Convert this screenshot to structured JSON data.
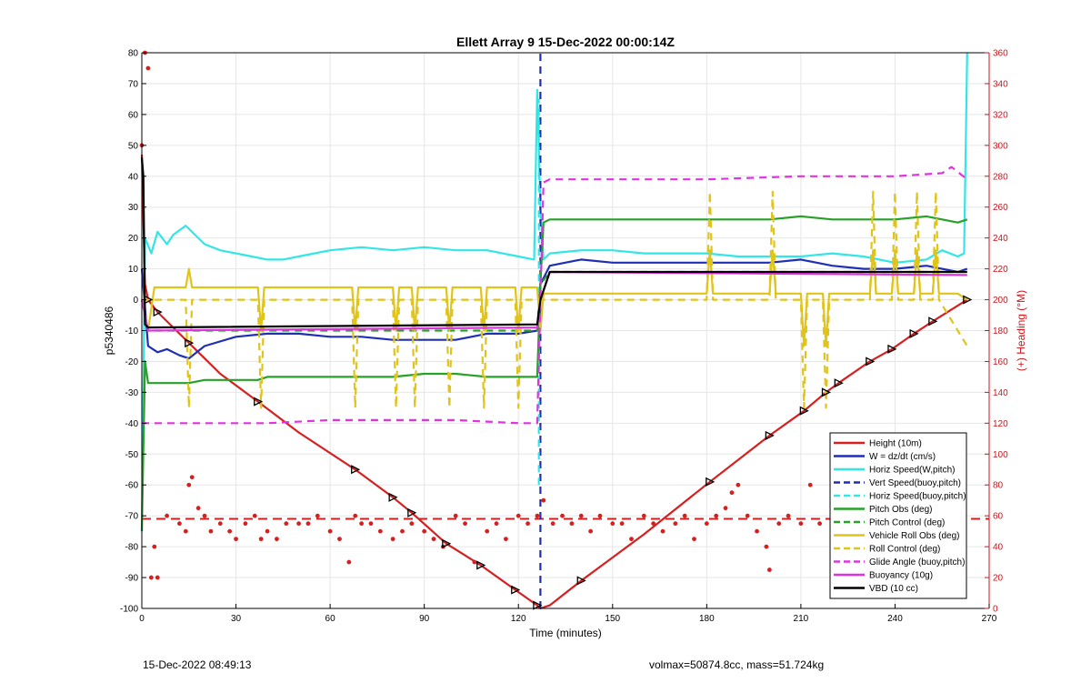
{
  "chart_data": {
    "type": "line",
    "title": "Ellett Array 9 15-Dec-2022 00:00:14Z",
    "xlabel": "Time (minutes)",
    "ylabel": "p5340486",
    "y2label": "(+) Heading (°M)",
    "xlim": [
      0,
      270
    ],
    "ylim": [
      -100,
      80
    ],
    "y2lim": [
      0,
      360
    ],
    "xticks": [
      0,
      30,
      60,
      90,
      120,
      150,
      180,
      210,
      240,
      270
    ],
    "yticks": [
      -100,
      -90,
      -80,
      -70,
      -60,
      -50,
      -40,
      -30,
      -20,
      -10,
      0,
      10,
      20,
      30,
      40,
      50,
      60,
      70,
      80
    ],
    "y2ticks": [
      0,
      20,
      40,
      60,
      80,
      100,
      120,
      140,
      160,
      180,
      200,
      220,
      240,
      260,
      280,
      300,
      320,
      340,
      360
    ],
    "grid": true,
    "legend_position": "lower-right",
    "colors": {
      "axis_left": "#000000",
      "axis_right": "#c8161d",
      "grid": "#e6e6e6"
    },
    "series": [
      {
        "name": "Height (10m)",
        "color": "#d62020",
        "style": "solid",
        "axis": "left",
        "x": [
          0,
          1,
          2,
          5,
          15,
          25,
          37,
          50,
          68,
          80,
          86,
          97,
          108,
          119,
          126,
          127,
          130,
          140,
          160,
          181,
          200,
          211,
          218,
          222,
          232,
          239,
          246,
          252,
          263
        ],
        "y": [
          47,
          5,
          0,
          -4,
          -14,
          -24,
          -33,
          -43,
          -55,
          -64,
          -69,
          -79,
          -86,
          -94,
          -99,
          -100,
          -99,
          -91,
          -76,
          -59,
          -44,
          -36,
          -30,
          -27,
          -20,
          -16,
          -11,
          -7,
          0
        ]
      },
      {
        "name": "W = dz/dt (cm/s)",
        "color": "#1f2fb4",
        "style": "solid",
        "axis": "left",
        "x": [
          0,
          2,
          5,
          8,
          12,
          15,
          20,
          30,
          40,
          50,
          60,
          70,
          80,
          90,
          100,
          110,
          120,
          126,
          127,
          130,
          140,
          150,
          160,
          170,
          180,
          190,
          200,
          210,
          220,
          230,
          240,
          250,
          260,
          263
        ],
        "y": [
          10,
          -15,
          -17,
          -16,
          -18,
          -19,
          -15,
          -12,
          -11,
          -11,
          -12,
          -12,
          -13,
          -13,
          -13,
          -11,
          -11,
          -10,
          5,
          11,
          13,
          12,
          12,
          12,
          12,
          12,
          12,
          13,
          11,
          10,
          10,
          11,
          9,
          10
        ]
      },
      {
        "name": "Horiz Speed(W,pitch)",
        "color": "#33e6e6",
        "style": "solid",
        "axis": "left",
        "x": [
          0,
          1,
          3,
          5,
          8,
          10,
          14,
          16,
          20,
          25,
          30,
          35,
          40,
          45,
          50,
          60,
          70,
          80,
          90,
          100,
          110,
          120,
          125,
          126,
          127,
          128,
          130,
          140,
          150,
          160,
          170,
          180,
          190,
          200,
          210,
          220,
          230,
          240,
          250,
          255,
          260,
          262,
          263
        ],
        "y": [
          -75,
          20,
          15,
          22,
          18,
          21,
          24,
          22,
          18,
          16,
          15,
          14,
          13,
          13,
          14,
          16,
          17,
          16,
          17,
          16,
          16,
          14,
          13,
          68,
          30,
          13,
          15,
          16,
          16,
          15,
          15,
          15,
          14,
          14,
          14,
          15,
          14,
          12,
          13,
          16,
          14,
          15,
          80
        ]
      },
      {
        "name": "Vert Speed(buoy,pitch)",
        "color": "#1f2fb4",
        "style": "dashed",
        "axis": "left",
        "x": [
          127,
          127
        ],
        "y": [
          -100,
          80
        ]
      },
      {
        "name": "Horiz Speed(buoy,pitch)",
        "color": "#33e6e6",
        "style": "dashed",
        "axis": "left",
        "x": [
          126.5,
          126.5
        ],
        "y": [
          -60,
          65
        ]
      },
      {
        "name": "Pitch Obs (deg)",
        "color": "#27a127",
        "style": "solid",
        "axis": "left",
        "x": [
          0,
          1,
          2,
          4,
          8,
          15,
          20,
          30,
          37,
          40,
          50,
          60,
          70,
          80,
          90,
          100,
          110,
          120,
          126,
          127,
          128,
          130,
          140,
          150,
          160,
          170,
          180,
          190,
          200,
          210,
          220,
          230,
          240,
          250,
          260,
          263
        ],
        "y": [
          -75,
          -20,
          -27,
          -27,
          -27,
          -27,
          -26,
          -26,
          -26,
          -25,
          -25,
          -25,
          -25,
          -25,
          -24,
          -24,
          -25,
          -25,
          -25,
          5,
          25,
          26,
          26,
          26,
          26,
          26,
          26,
          26,
          26,
          27,
          26,
          26,
          26,
          27,
          25,
          26
        ]
      },
      {
        "name": "Pitch Control (deg)",
        "color": "#27a127",
        "style": "dashed",
        "axis": "left",
        "x": [
          0,
          2,
          126,
          127,
          130,
          263
        ],
        "y": [
          0,
          -10,
          -10,
          5,
          9,
          9
        ]
      },
      {
        "name": "Vehicle Roll Obs (deg)",
        "color": "#e0c41a",
        "style": "solid",
        "axis": "left",
        "x": [
          0,
          2,
          4,
          14,
          15,
          16,
          17,
          37,
          38,
          39,
          40,
          67,
          68,
          69,
          80,
          81,
          82,
          86,
          87,
          88,
          97,
          98,
          99,
          108,
          109,
          110,
          119,
          120,
          121,
          126,
          127,
          128,
          129,
          130,
          140,
          180,
          181,
          182,
          200,
          201,
          202,
          210,
          211,
          212,
          217,
          218,
          219,
          232,
          233,
          234,
          239,
          240,
          241,
          246,
          247,
          248,
          252,
          253,
          254,
          260,
          263
        ],
        "y": [
          0,
          -10,
          4,
          4,
          10,
          4,
          4,
          4,
          -10,
          4,
          4,
          4,
          -10,
          4,
          4,
          -10,
          4,
          4,
          -10,
          4,
          4,
          -10,
          4,
          4,
          -10,
          4,
          4,
          -10,
          4,
          4,
          -10,
          2,
          2,
          2,
          2,
          2,
          16,
          2,
          2,
          16,
          2,
          2,
          -15,
          2,
          2,
          -15,
          2,
          2,
          16,
          2,
          2,
          16,
          2,
          2,
          16,
          2,
          2,
          16,
          2,
          2,
          0
        ]
      },
      {
        "name": "Roll Control (deg)",
        "color": "#e0c41a",
        "style": "dashed",
        "axis": "left",
        "x": [
          0,
          5,
          14,
          15,
          16,
          37,
          38,
          39,
          67,
          68,
          69,
          80,
          81,
          82,
          86,
          87,
          88,
          97,
          98,
          99,
          108,
          109,
          110,
          119,
          120,
          121,
          126,
          127,
          130,
          180,
          181,
          182,
          200,
          201,
          202,
          210,
          211,
          212,
          217,
          218,
          219,
          232,
          233,
          234,
          239,
          240,
          241,
          246,
          247,
          248,
          252,
          253,
          254,
          263
        ],
        "y": [
          0,
          0,
          0,
          -35,
          0,
          0,
          -35,
          0,
          0,
          -35,
          0,
          0,
          -35,
          0,
          0,
          -35,
          0,
          0,
          -35,
          0,
          0,
          -35,
          0,
          0,
          -35,
          0,
          0,
          0,
          0,
          0,
          35,
          0,
          0,
          35,
          0,
          0,
          -35,
          0,
          0,
          -35,
          0,
          0,
          35,
          0,
          0,
          35,
          0,
          0,
          35,
          0,
          0,
          35,
          0,
          -15
        ]
      },
      {
        "name": "Glide Angle (buoy,pitch)",
        "color": "#e033e0",
        "style": "dashed",
        "axis": "left",
        "x": [
          0,
          2,
          5,
          20,
          40,
          60,
          80,
          100,
          120,
          126,
          127,
          128,
          130,
          150,
          180,
          210,
          240,
          255,
          258,
          263
        ],
        "y": [
          -40,
          -40,
          -40,
          -40,
          -40,
          -39,
          -39,
          -39,
          -40,
          -40,
          0,
          38,
          39,
          39,
          39,
          40,
          40,
          41,
          43,
          39
        ]
      },
      {
        "name": "Buoyancy (10g)",
        "color": "#e033e0",
        "style": "solid",
        "axis": "left",
        "x": [
          0,
          2,
          126,
          127,
          130,
          263
        ],
        "y": [
          0,
          -10,
          -9,
          0,
          9,
          8
        ]
      },
      {
        "name": "VBD (10 cc)",
        "color": "#000000",
        "style": "solid",
        "axis": "left",
        "x": [
          0,
          0.5,
          1,
          2,
          126,
          127,
          130,
          263
        ],
        "y": [
          46,
          40,
          -8,
          -9,
          -8,
          0,
          9,
          9
        ]
      }
    ],
    "heading_series": {
      "axis": "right",
      "color": "#d62020",
      "marker": "dot",
      "x": [
        0,
        1,
        2,
        3,
        4,
        5,
        8,
        12,
        14,
        15,
        16,
        18,
        20,
        22,
        25,
        28,
        30,
        33,
        36,
        38,
        40,
        43,
        46,
        50,
        53,
        56,
        60,
        63,
        66,
        68,
        70,
        73,
        76,
        80,
        83,
        86,
        90,
        93,
        96,
        100,
        103,
        106,
        110,
        113,
        116,
        120,
        123,
        126,
        128,
        131,
        134,
        137,
        140,
        143,
        146,
        150,
        153,
        156,
        160,
        163,
        166,
        170,
        173,
        176,
        180,
        183,
        186,
        188,
        190,
        193,
        196,
        199,
        200,
        203,
        206,
        210,
        213,
        216,
        220,
        223,
        226,
        230,
        233,
        236,
        240,
        243,
        246,
        250,
        253,
        256,
        260,
        262
      ],
      "y": [
        300,
        360,
        350,
        20,
        40,
        20,
        60,
        55,
        50,
        80,
        85,
        65,
        60,
        50,
        55,
        50,
        45,
        55,
        60,
        45,
        50,
        45,
        55,
        55,
        55,
        60,
        50,
        45,
        30,
        60,
        55,
        55,
        50,
        45,
        50,
        55,
        50,
        45,
        40,
        60,
        55,
        30,
        50,
        55,
        45,
        60,
        55,
        60,
        70,
        55,
        60,
        55,
        60,
        50,
        60,
        55,
        55,
        45,
        60,
        55,
        50,
        55,
        60,
        45,
        55,
        60,
        65,
        75,
        80,
        60,
        50,
        40,
        25,
        55,
        60,
        55,
        80,
        55,
        60,
        45,
        50,
        60,
        55,
        60,
        55,
        45,
        40,
        55,
        55,
        50,
        60,
        110
      ]
    },
    "heading_reference": {
      "axis": "right",
      "color": "#d62020",
      "style": "dashed",
      "value": 58
    },
    "markers": {
      "description": "triangle markers along Height trace",
      "x": [
        2,
        5,
        15,
        37,
        68,
        80,
        86,
        97,
        108,
        119,
        126,
        140,
        181,
        200,
        211,
        218,
        222,
        232,
        239,
        246,
        252,
        263
      ],
      "y": [
        0,
        -4,
        -14,
        -33,
        -55,
        -64,
        -69,
        -79,
        -86,
        -94,
        -99,
        -91,
        -59,
        -44,
        -36,
        -30,
        -27,
        -20,
        -16,
        -11,
        -7,
        0
      ]
    }
  },
  "footer": {
    "left": "15-Dec-2022 08:49:13",
    "right": "volmax=50874.8cc, mass=51.724kg"
  }
}
